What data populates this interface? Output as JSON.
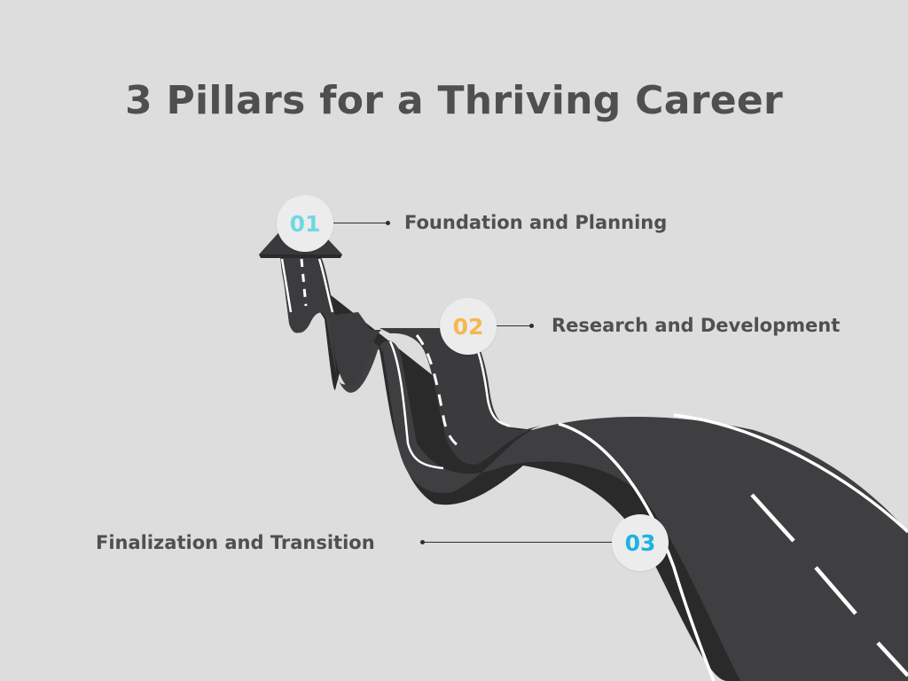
{
  "title": "3 Pillars for a Thriving Career",
  "colors": {
    "background": "#dddddd",
    "road": "#3f3f41",
    "road_edge": "#2a2a2b",
    "lane_marking": "#ffffff",
    "title_text": "#4f4f4f",
    "label_text": "#505050",
    "badge_fill": "#ececec"
  },
  "steps": [
    {
      "number": "01",
      "label": "Foundation and Planning",
      "color": "#6ed8e4"
    },
    {
      "number": "02",
      "label": "Research and Development",
      "color": "#f5b74e"
    },
    {
      "number": "03",
      "label": "Finalization and Transition",
      "color": "#1bb3e3"
    }
  ]
}
